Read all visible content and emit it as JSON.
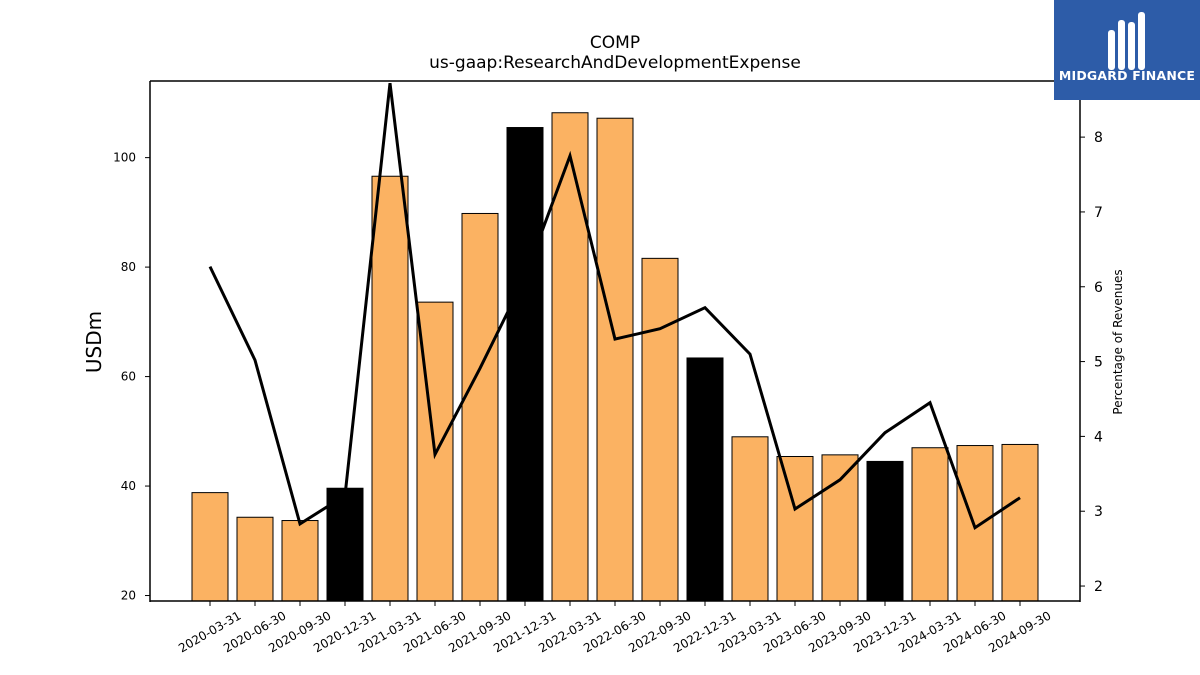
{
  "chart_data": {
    "type": "bar",
    "title": "COMP",
    "subtitle": "us-gaap:ResearchAndDevelopmentExpense",
    "ylabel": "USDm",
    "y2label": "Percentage of Revenues",
    "ylim": [
      19,
      114
    ],
    "y2lim": [
      1.8,
      8.75
    ],
    "yticks": [
      20,
      40,
      60,
      80,
      100
    ],
    "y2ticks": [
      2,
      3,
      4,
      5,
      6,
      7,
      8
    ],
    "categories": [
      "2020-03-31",
      "2020-06-30",
      "2020-09-30",
      "2020-12-31",
      "2021-03-31",
      "2021-06-30",
      "2021-09-30",
      "2021-12-31",
      "2022-03-31",
      "2022-06-30",
      "2022-09-30",
      "2022-12-31",
      "2023-03-31",
      "2023-06-30",
      "2023-09-30",
      "2023-12-31",
      "2024-03-31",
      "2024-06-30",
      "2024-09-30"
    ],
    "series": [
      {
        "kind": "bar",
        "axis": "left",
        "values": [
          38.8,
          34.3,
          33.7,
          39.6,
          96.6,
          73.6,
          89.8,
          105.5,
          108.2,
          107.2,
          81.6,
          63.4,
          49.0,
          45.4,
          45.7,
          44.5,
          47.0,
          47.4,
          47.6
        ],
        "colors": [
          "#FBB262",
          "#FBB262",
          "#FBB262",
          "#000000",
          "#FBB262",
          "#FBB262",
          "#FBB262",
          "#000000",
          "#FBB262",
          "#FBB262",
          "#FBB262",
          "#000000",
          "#FBB262",
          "#FBB262",
          "#FBB262",
          "#000000",
          "#FBB262",
          "#FBB262",
          "#FBB262"
        ]
      },
      {
        "kind": "line",
        "axis": "right",
        "color": "#000000",
        "values": [
          6.27,
          5.02,
          2.83,
          3.21,
          8.72,
          3.76,
          4.91,
          6.13,
          7.75,
          5.3,
          5.44,
          5.72,
          5.1,
          3.03,
          3.42,
          4.05,
          4.45,
          2.78,
          3.18
        ]
      }
    ],
    "grid": false,
    "legend": "none"
  },
  "logo": {
    "text": "MIDGARD FINANCE",
    "bg_color": "#2D5CA8"
  }
}
